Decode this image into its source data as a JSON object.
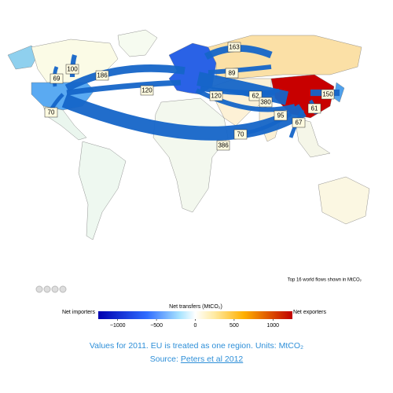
{
  "map": {
    "flows": [
      {
        "label": "163"
      },
      {
        "label": "100"
      },
      {
        "label": "69"
      },
      {
        "label": "186"
      },
      {
        "label": "89"
      },
      {
        "label": "120"
      },
      {
        "label": "120"
      },
      {
        "label": "62"
      },
      {
        "label": "380"
      },
      {
        "label": "150"
      },
      {
        "label": "61"
      },
      {
        "label": "95"
      },
      {
        "label": "67"
      },
      {
        "label": "70"
      },
      {
        "label": "70"
      },
      {
        "label": "386"
      }
    ],
    "note": "Top 16 world flows shown in MtCO₂"
  },
  "colorbar": {
    "title": "Net transfers (MtCO₂)",
    "left_label": "Net importers",
    "right_label": "Net exporters",
    "lim": [
      -1250,
      1250
    ],
    "ticks": [
      {
        "value": -1000,
        "label": "−1000"
      },
      {
        "value": -500,
        "label": "−500"
      },
      0,
      500,
      1000
    ]
  },
  "caption": {
    "line1": "Values for 2011. EU is treated as one region. Units: MtCO₂",
    "source_prefix": "Source: ",
    "source_link": "Peters et al 2012"
  }
}
